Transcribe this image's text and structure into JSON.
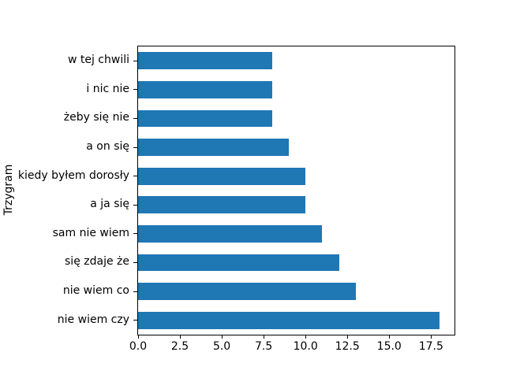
{
  "figure": {
    "background": "#ffffff",
    "text_color": "#000000"
  },
  "chart_data": {
    "type": "bar",
    "orientation": "horizontal",
    "title": "",
    "xlabel": "",
    "ylabel": "Trzygram",
    "categories": [
      "w tej chwili",
      "i nic nie",
      "żeby się nie",
      "a on się",
      "kiedy byłem dorosły",
      "a ja się",
      "sam nie wiem",
      "się zdaje że",
      "nie wiem co",
      "nie wiem czy"
    ],
    "values": [
      8,
      8,
      8,
      9,
      10,
      10,
      11,
      12,
      13,
      18
    ],
    "xlim": [
      0,
      18.9
    ],
    "xticks": [
      "0.0",
      "2.5",
      "5.0",
      "7.5",
      "10.0",
      "12.5",
      "15.0",
      "17.5"
    ],
    "bar_color": "#1f77b4",
    "grid": false,
    "legend_position": "none"
  }
}
